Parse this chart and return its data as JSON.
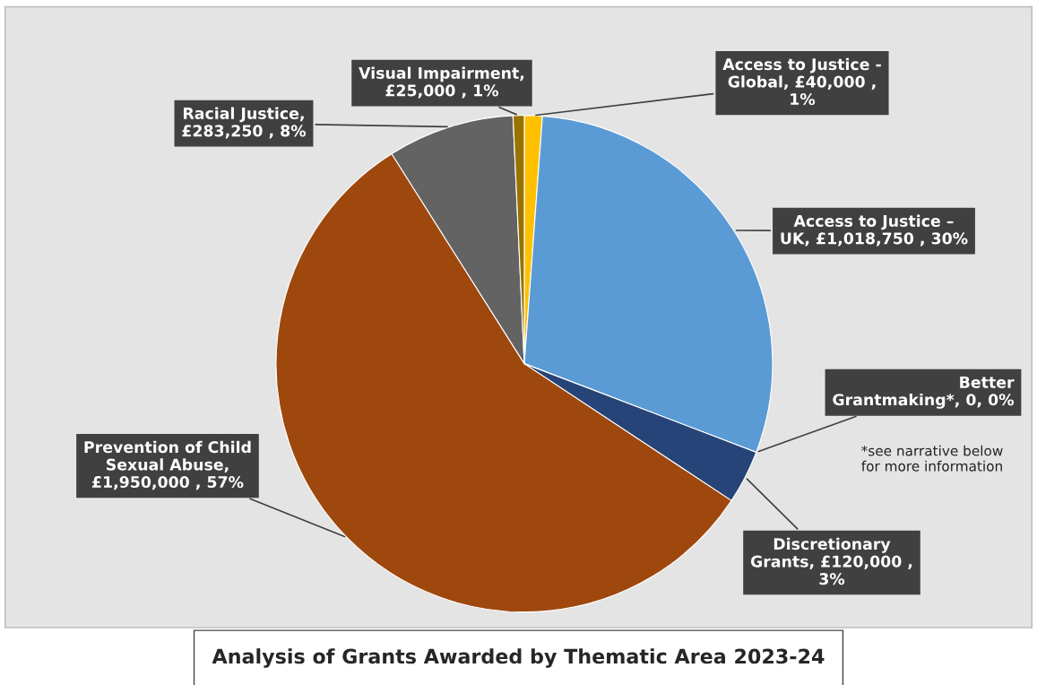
{
  "chart_data": {
    "type": "pie",
    "title": "Analysis of Grants Awarded by Thematic Area 2023-24",
    "categories": [
      "Access to Justice -\nGlobal",
      "Access to Justice –\nUK",
      "Better\nGrantmaking*",
      "Discretionary\nGrants",
      "Prevention of Child\nSexual Abuse",
      "Racial Justice",
      "Visual Impairment"
    ],
    "values": [
      40000,
      1018750,
      0,
      120000,
      1950000,
      283250,
      25000
    ],
    "value_labels": [
      ", £40,000 ,\n1%",
      ", £1,018,750 , 30%",
      ", 0, 0%",
      ", £120,000 ,\n3%",
      ",\n£1,950,000 , 57%",
      ",\n£283,250 , 8%",
      ",\n£25,000 , 1%"
    ],
    "colors": [
      "#ffc000",
      "#5b9bd5",
      "#a5a5a5",
      "#264478",
      "#9e480e",
      "#636363",
      "#997300"
    ],
    "annotations": [
      "*see narrative below\nfor more information"
    ]
  }
}
